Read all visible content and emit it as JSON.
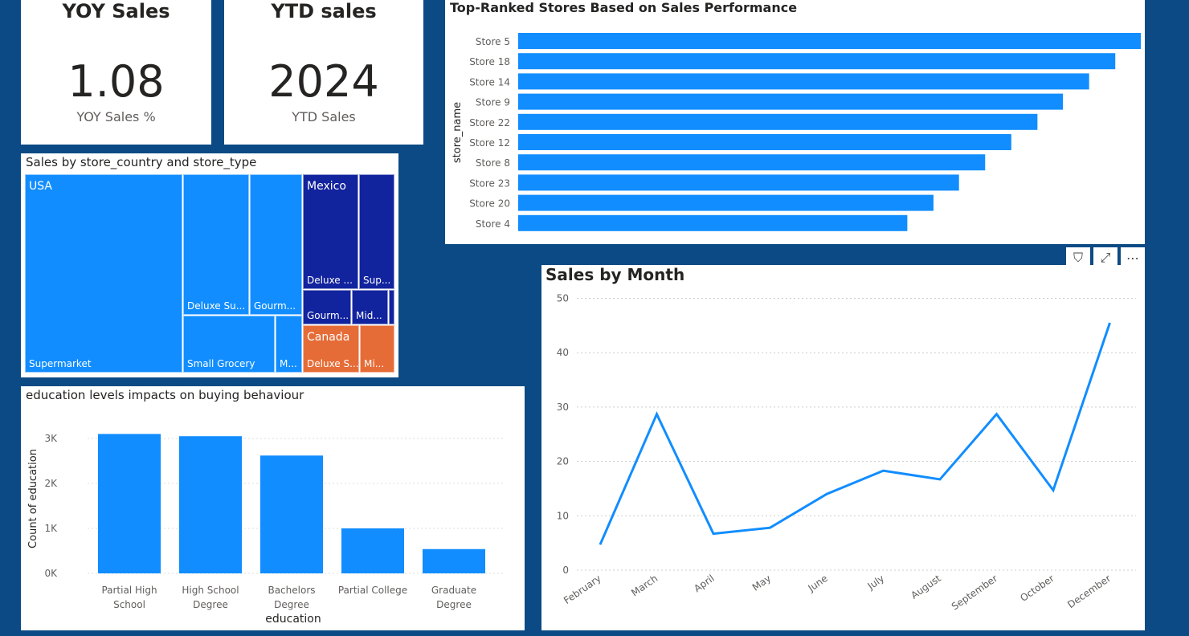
{
  "kpis": [
    {
      "title": "YOY Sales",
      "value": "1.08",
      "label": "YOY Sales %"
    },
    {
      "title": "YTD sales",
      "value": "2024",
      "label": "YTD Sales"
    }
  ],
  "treemap": {
    "title": "Sales by store_country and store_type",
    "countries": [
      {
        "name": "USA",
        "color": "#118dff"
      },
      {
        "name": "Mexico",
        "color": "#12239e"
      },
      {
        "name": "Canada",
        "color": "#e66c37"
      }
    ],
    "cells": [
      "Supermarket",
      "Deluxe Su...",
      "Gourm...",
      "Small Grocery",
      "M...",
      "Deluxe ...",
      "Sup...",
      "Gourm...",
      "Mid...",
      "",
      "Deluxe S...",
      "Mi..."
    ]
  },
  "chart_data": [
    {
      "type": "bar",
      "orientation": "horizontal",
      "title": "Top-Ranked Stores Based on Sales Performance",
      "ylabel": "store_name",
      "categories": [
        "Store 5",
        "Store 18",
        "Store 14",
        "Store 9",
        "Store 22",
        "Store 12",
        "Store 8",
        "Store 23",
        "Store 20",
        "Store 4"
      ],
      "values": [
        100,
        95.9,
        91.7,
        87.5,
        83.4,
        79.2,
        75,
        70.8,
        66.7,
        62.5
      ],
      "color": "#118dff"
    },
    {
      "type": "bar",
      "title": "education levels impacts on buying behaviour",
      "xlabel": "education",
      "ylabel": "Count of education",
      "categories": [
        [
          "Partial High",
          "School"
        ],
        [
          "High School",
          "Degree"
        ],
        [
          "Bachelors",
          "Degree"
        ],
        [
          "Partial College"
        ],
        [
          "Graduate",
          "Degree"
        ]
      ],
      "values": [
        3100,
        3050,
        2620,
        1000,
        540
      ],
      "yticks": [
        "0K",
        "1K",
        "2K",
        "3K"
      ],
      "ylim": [
        0,
        3000
      ],
      "color": "#118dff"
    },
    {
      "type": "line",
      "title": "Sales by Month",
      "categories": [
        "February",
        "March",
        "April",
        "May",
        "June",
        "July",
        "August",
        "September",
        "October",
        "December"
      ],
      "values": [
        4.7,
        28.7,
        6.7,
        7.8,
        14,
        18.3,
        16.7,
        28.7,
        14.7,
        45.5
      ],
      "yticks": [
        "0",
        "10",
        "20",
        "30",
        "40",
        "50"
      ],
      "ylim": [
        0,
        50
      ],
      "color": "#118dff"
    }
  ],
  "visual_header": {
    "filter": "⛉",
    "focus": "⤢",
    "more": "⋯"
  }
}
